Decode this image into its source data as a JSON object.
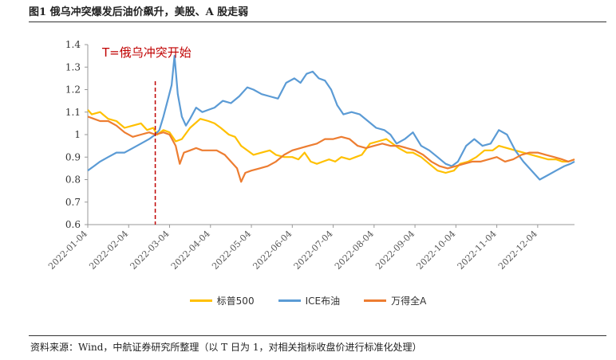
{
  "figure": {
    "title": "图1  俄乌冲突爆发后油价飙升，美股、A 股走弱",
    "source": "资料来源：Wind，中航证券研究所整理（以 T 日为 1，对相关指标收盘价进行标准化处理）"
  },
  "chart_data": {
    "type": "line",
    "title": "图1  俄乌冲突爆发后油价飙升，美股、A 股走弱",
    "xlabel": "",
    "ylabel": "",
    "ylim": [
      0.6,
      1.4
    ],
    "yticks": [
      "0.6",
      "0.7",
      "0.8",
      "0.9",
      "1",
      "1.1",
      "1.2",
      "1.3",
      "1.4"
    ],
    "x_tick_labels": [
      "2022-01-04",
      "2022-02-04",
      "2022-03-04",
      "2022-04-04",
      "2022-05-04",
      "2022-06-04",
      "2022-07-04",
      "2022-08-04",
      "2022-09-04",
      "2022-10-04",
      "2022-11-04",
      "2022-12-04"
    ],
    "x_range_months": [
      0,
      11.9
    ],
    "event_marker": {
      "x": 1.65,
      "label": "T=俄乌冲突开始"
    },
    "series": [
      {
        "name": "标普500",
        "color": "#ffc000",
        "points": [
          [
            0,
            1.11
          ],
          [
            0.1,
            1.09
          ],
          [
            0.3,
            1.1
          ],
          [
            0.5,
            1.07
          ],
          [
            0.7,
            1.06
          ],
          [
            0.9,
            1.03
          ],
          [
            1.1,
            1.04
          ],
          [
            1.3,
            1.05
          ],
          [
            1.45,
            1.02
          ],
          [
            1.6,
            1.03
          ],
          [
            1.7,
            1.0
          ],
          [
            1.85,
            1.02
          ],
          [
            2.0,
            1.01
          ],
          [
            2.15,
            0.97
          ],
          [
            2.3,
            0.98
          ],
          [
            2.5,
            1.03
          ],
          [
            2.75,
            1.07
          ],
          [
            2.95,
            1.06
          ],
          [
            3.1,
            1.05
          ],
          [
            3.25,
            1.03
          ],
          [
            3.45,
            1.0
          ],
          [
            3.6,
            0.99
          ],
          [
            3.75,
            0.95
          ],
          [
            3.9,
            0.93
          ],
          [
            4.05,
            0.91
          ],
          [
            4.25,
            0.92
          ],
          [
            4.45,
            0.93
          ],
          [
            4.6,
            0.91
          ],
          [
            4.8,
            0.9
          ],
          [
            5.0,
            0.9
          ],
          [
            5.15,
            0.89
          ],
          [
            5.3,
            0.92
          ],
          [
            5.45,
            0.88
          ],
          [
            5.6,
            0.87
          ],
          [
            5.75,
            0.88
          ],
          [
            5.9,
            0.89
          ],
          [
            6.05,
            0.88
          ],
          [
            6.2,
            0.9
          ],
          [
            6.4,
            0.89
          ],
          [
            6.55,
            0.9
          ],
          [
            6.7,
            0.91
          ],
          [
            6.9,
            0.96
          ],
          [
            7.1,
            0.97
          ],
          [
            7.3,
            0.98
          ],
          [
            7.45,
            0.96
          ],
          [
            7.6,
            0.94
          ],
          [
            7.8,
            0.92
          ],
          [
            7.95,
            0.92
          ],
          [
            8.15,
            0.9
          ],
          [
            8.35,
            0.87
          ],
          [
            8.55,
            0.84
          ],
          [
            8.75,
            0.83
          ],
          [
            8.95,
            0.84
          ],
          [
            9.1,
            0.87
          ],
          [
            9.3,
            0.88
          ],
          [
            9.5,
            0.9
          ],
          [
            9.7,
            0.93
          ],
          [
            9.9,
            0.93
          ],
          [
            10.05,
            0.95
          ],
          [
            10.25,
            0.94
          ],
          [
            10.45,
            0.93
          ],
          [
            10.65,
            0.92
          ],
          [
            10.85,
            0.91
          ],
          [
            11.05,
            0.9
          ],
          [
            11.25,
            0.89
          ],
          [
            11.45,
            0.89
          ],
          [
            11.6,
            0.88
          ],
          [
            11.75,
            0.88
          ],
          [
            11.9,
            0.89
          ]
        ]
      },
      {
        "name": "ICE布油",
        "color": "#5b9bd5",
        "points": [
          [
            0,
            0.84
          ],
          [
            0.15,
            0.86
          ],
          [
            0.3,
            0.88
          ],
          [
            0.5,
            0.9
          ],
          [
            0.7,
            0.92
          ],
          [
            0.9,
            0.92
          ],
          [
            1.1,
            0.94
          ],
          [
            1.3,
            0.96
          ],
          [
            1.5,
            0.98
          ],
          [
            1.65,
            1.0
          ],
          [
            1.75,
            1.02
          ],
          [
            1.85,
            1.08
          ],
          [
            1.95,
            1.15
          ],
          [
            2.05,
            1.22
          ],
          [
            2.12,
            1.35
          ],
          [
            2.2,
            1.18
          ],
          [
            2.3,
            1.08
          ],
          [
            2.4,
            1.04
          ],
          [
            2.5,
            1.07
          ],
          [
            2.65,
            1.12
          ],
          [
            2.8,
            1.1
          ],
          [
            2.95,
            1.11
          ],
          [
            3.1,
            1.12
          ],
          [
            3.3,
            1.15
          ],
          [
            3.5,
            1.14
          ],
          [
            3.7,
            1.17
          ],
          [
            3.9,
            1.21
          ],
          [
            4.05,
            1.2
          ],
          [
            4.25,
            1.18
          ],
          [
            4.45,
            1.17
          ],
          [
            4.65,
            1.16
          ],
          [
            4.85,
            1.23
          ],
          [
            5.05,
            1.25
          ],
          [
            5.2,
            1.23
          ],
          [
            5.35,
            1.27
          ],
          [
            5.5,
            1.28
          ],
          [
            5.65,
            1.25
          ],
          [
            5.8,
            1.24
          ],
          [
            5.95,
            1.2
          ],
          [
            6.1,
            1.13
          ],
          [
            6.25,
            1.09
          ],
          [
            6.45,
            1.1
          ],
          [
            6.65,
            1.09
          ],
          [
            6.85,
            1.06
          ],
          [
            7.05,
            1.03
          ],
          [
            7.25,
            1.02
          ],
          [
            7.4,
            1.0
          ],
          [
            7.55,
            0.96
          ],
          [
            7.75,
            0.98
          ],
          [
            7.95,
            1.01
          ],
          [
            8.15,
            0.95
          ],
          [
            8.35,
            0.93
          ],
          [
            8.55,
            0.9
          ],
          [
            8.75,
            0.87
          ],
          [
            8.9,
            0.86
          ],
          [
            9.05,
            0.88
          ],
          [
            9.25,
            0.95
          ],
          [
            9.45,
            0.98
          ],
          [
            9.65,
            0.95
          ],
          [
            9.85,
            0.96
          ],
          [
            10.05,
            1.02
          ],
          [
            10.25,
            1.0
          ],
          [
            10.45,
            0.93
          ],
          [
            10.65,
            0.88
          ],
          [
            10.85,
            0.84
          ],
          [
            11.05,
            0.8
          ],
          [
            11.25,
            0.82
          ],
          [
            11.45,
            0.84
          ],
          [
            11.65,
            0.86
          ],
          [
            11.8,
            0.87
          ],
          [
            11.9,
            0.88
          ]
        ]
      },
      {
        "name": "万得全A",
        "color": "#ed7d31",
        "points": [
          [
            0,
            1.08
          ],
          [
            0.15,
            1.07
          ],
          [
            0.3,
            1.06
          ],
          [
            0.5,
            1.06
          ],
          [
            0.7,
            1.04
          ],
          [
            0.9,
            1.01
          ],
          [
            1.1,
            0.99
          ],
          [
            1.3,
            1.0
          ],
          [
            1.5,
            1.01
          ],
          [
            1.65,
            1.0
          ],
          [
            1.85,
            1.01
          ],
          [
            2.0,
            1.0
          ],
          [
            2.15,
            0.95
          ],
          [
            2.25,
            0.87
          ],
          [
            2.35,
            0.92
          ],
          [
            2.5,
            0.93
          ],
          [
            2.65,
            0.94
          ],
          [
            2.8,
            0.93
          ],
          [
            2.95,
            0.93
          ],
          [
            3.15,
            0.93
          ],
          [
            3.35,
            0.91
          ],
          [
            3.5,
            0.88
          ],
          [
            3.65,
            0.85
          ],
          [
            3.75,
            0.79
          ],
          [
            3.85,
            0.83
          ],
          [
            4.0,
            0.84
          ],
          [
            4.2,
            0.85
          ],
          [
            4.4,
            0.86
          ],
          [
            4.6,
            0.88
          ],
          [
            4.8,
            0.91
          ],
          [
            5.0,
            0.93
          ],
          [
            5.2,
            0.94
          ],
          [
            5.4,
            0.95
          ],
          [
            5.6,
            0.96
          ],
          [
            5.8,
            0.98
          ],
          [
            6.0,
            0.98
          ],
          [
            6.2,
            0.99
          ],
          [
            6.4,
            0.98
          ],
          [
            6.6,
            0.95
          ],
          [
            6.8,
            0.94
          ],
          [
            7.0,
            0.95
          ],
          [
            7.2,
            0.96
          ],
          [
            7.4,
            0.95
          ],
          [
            7.6,
            0.95
          ],
          [
            7.8,
            0.94
          ],
          [
            8.0,
            0.93
          ],
          [
            8.2,
            0.91
          ],
          [
            8.4,
            0.88
          ],
          [
            8.6,
            0.86
          ],
          [
            8.8,
            0.85
          ],
          [
            9.0,
            0.86
          ],
          [
            9.2,
            0.87
          ],
          [
            9.4,
            0.88
          ],
          [
            9.6,
            0.88
          ],
          [
            9.8,
            0.89
          ],
          [
            10.0,
            0.9
          ],
          [
            10.2,
            0.88
          ],
          [
            10.4,
            0.89
          ],
          [
            10.6,
            0.91
          ],
          [
            10.8,
            0.92
          ],
          [
            11.0,
            0.92
          ],
          [
            11.2,
            0.91
          ],
          [
            11.4,
            0.9
          ],
          [
            11.6,
            0.89
          ],
          [
            11.75,
            0.88
          ],
          [
            11.9,
            0.89
          ]
        ]
      }
    ]
  }
}
